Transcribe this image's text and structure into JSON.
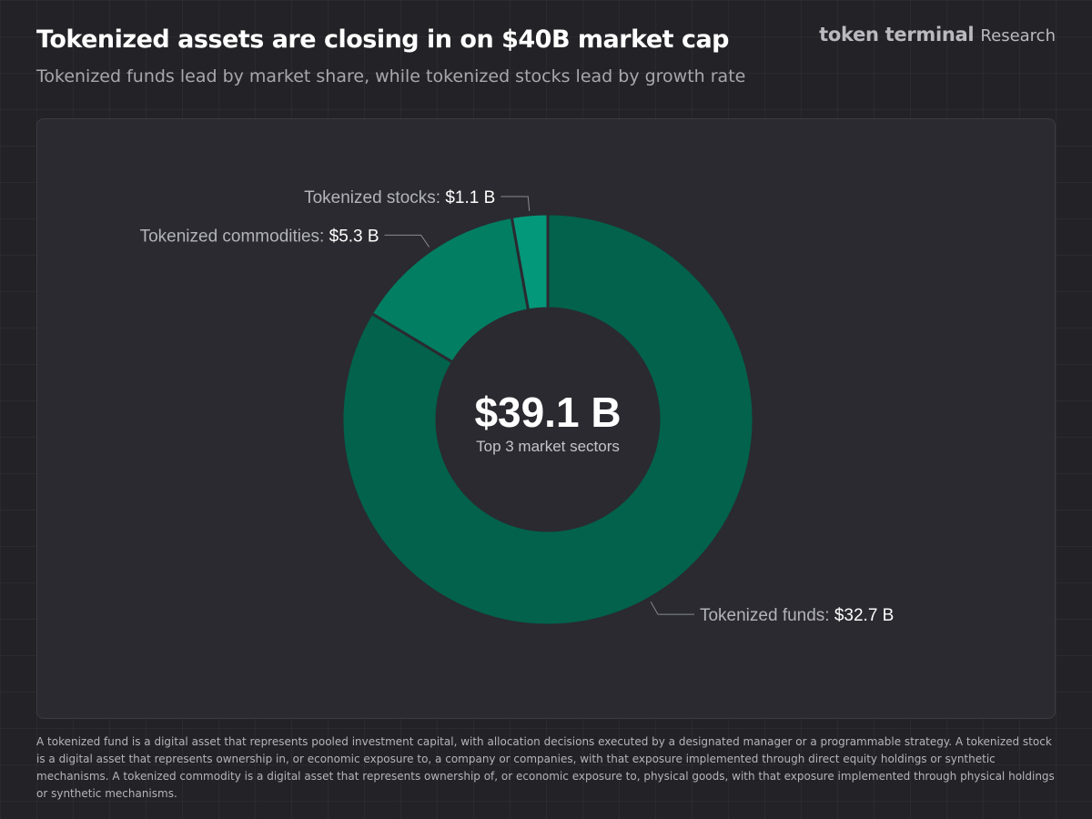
{
  "header": {
    "title": "Tokenized assets are closing in on $40B market cap",
    "subtitle": "Tokenized funds lead by market share, while tokenized stocks lead by growth rate",
    "brand_name": "token terminal",
    "brand_suffix": "Research"
  },
  "chart_data": {
    "type": "pie",
    "donut": true,
    "center_value": "$39.1 B",
    "center_label": "Top 3 market sectors",
    "slices": [
      {
        "name": "Tokenized funds",
        "value": 32.7,
        "display": "$32.7 B",
        "color": "#02624c"
      },
      {
        "name": "Tokenized commodities",
        "value": 5.3,
        "display": "$5.3 B",
        "color": "#027e62"
      },
      {
        "name": "Tokenized stocks",
        "value": 1.1,
        "display": "$1.1 B",
        "color": "#04987a"
      }
    ]
  },
  "footnote": "A tokenized fund is a digital asset that represents pooled investment capital, with allocation decisions executed by a designated manager or a programmable strategy. A tokenized stock is a digital asset that represents ownership in, or economic exposure to, a company or companies, with that exposure implemented through direct equity holdings or synthetic mechanisms. A tokenized commodity is a digital asset that represents ownership of, or economic exposure to, physical goods, with that exposure implemented through physical holdings or synthetic mechanisms."
}
